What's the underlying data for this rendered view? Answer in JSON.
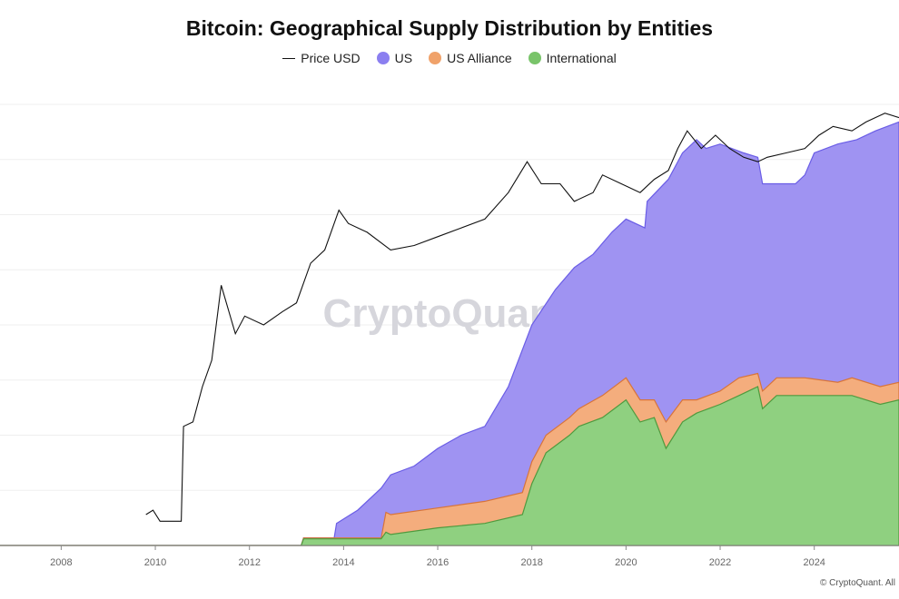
{
  "chart_data": {
    "type": "area",
    "title": "Bitcoin: Geographical Supply Distribution by Entities",
    "watermark": "CryptoQuant",
    "copyright": "© CryptoQuant. All",
    "x_ticks": [
      "2008",
      "2010",
      "2012",
      "2014",
      "2016",
      "2018",
      "2020",
      "2022",
      "2024"
    ],
    "xlim": [
      2006.7,
      2025.8
    ],
    "ylim": [
      0,
      1
    ],
    "legend": [
      {
        "name": "Price USD",
        "color": "#111111",
        "kind": "line"
      },
      {
        "name": "US",
        "color": "#8b7ff0",
        "kind": "dot"
      },
      {
        "name": "US Alliance",
        "color": "#f0a26a",
        "kind": "dot"
      },
      {
        "name": "International",
        "color": "#79c46a",
        "kind": "dot"
      }
    ],
    "series": [
      {
        "name": "International",
        "color": "#8fd080",
        "stroke": "#4f9a3e",
        "points": [
          [
            2006.7,
            0
          ],
          [
            2013.1,
            0
          ],
          [
            2013.15,
            0.015
          ],
          [
            2014.8,
            0.015
          ],
          [
            2014.9,
            0.03
          ],
          [
            2015.0,
            0.025
          ],
          [
            2016.0,
            0.04
          ],
          [
            2017.0,
            0.05
          ],
          [
            2017.8,
            0.07
          ],
          [
            2018.0,
            0.14
          ],
          [
            2018.3,
            0.21
          ],
          [
            2018.8,
            0.25
          ],
          [
            2019.0,
            0.27
          ],
          [
            2019.5,
            0.29
          ],
          [
            2020.0,
            0.33
          ],
          [
            2020.3,
            0.28
          ],
          [
            2020.6,
            0.29
          ],
          [
            2020.85,
            0.22
          ],
          [
            2021.2,
            0.28
          ],
          [
            2021.5,
            0.3
          ],
          [
            2022.0,
            0.32
          ],
          [
            2022.4,
            0.34
          ],
          [
            2022.8,
            0.36
          ],
          [
            2022.9,
            0.31
          ],
          [
            2023.2,
            0.34
          ],
          [
            2023.8,
            0.34
          ],
          [
            2024.5,
            0.34
          ],
          [
            2024.8,
            0.34
          ],
          [
            2025.4,
            0.32
          ],
          [
            2025.8,
            0.33
          ]
        ]
      },
      {
        "name": "US Alliance",
        "color": "#f4ad7d",
        "stroke": "#d8743a",
        "points": [
          [
            2006.7,
            0
          ],
          [
            2013.1,
            0
          ],
          [
            2013.15,
            0.017
          ],
          [
            2014.8,
            0.017
          ],
          [
            2014.9,
            0.075
          ],
          [
            2015.0,
            0.07
          ],
          [
            2016.0,
            0.085
          ],
          [
            2017.0,
            0.1
          ],
          [
            2017.8,
            0.12
          ],
          [
            2018.0,
            0.19
          ],
          [
            2018.3,
            0.25
          ],
          [
            2018.8,
            0.29
          ],
          [
            2019.0,
            0.31
          ],
          [
            2019.5,
            0.34
          ],
          [
            2020.0,
            0.38
          ],
          [
            2020.3,
            0.33
          ],
          [
            2020.6,
            0.33
          ],
          [
            2020.85,
            0.28
          ],
          [
            2021.2,
            0.33
          ],
          [
            2021.5,
            0.33
          ],
          [
            2022.0,
            0.35
          ],
          [
            2022.4,
            0.38
          ],
          [
            2022.8,
            0.39
          ],
          [
            2022.9,
            0.35
          ],
          [
            2023.2,
            0.38
          ],
          [
            2023.8,
            0.38
          ],
          [
            2024.5,
            0.37
          ],
          [
            2024.8,
            0.38
          ],
          [
            2025.4,
            0.36
          ],
          [
            2025.8,
            0.37
          ]
        ]
      },
      {
        "name": "US",
        "color": "#9f93f2",
        "stroke": "#6a5de6",
        "points": [
          [
            2006.7,
            0
          ],
          [
            2013.1,
            0
          ],
          [
            2013.15,
            0.017
          ],
          [
            2013.8,
            0.017
          ],
          [
            2013.85,
            0.05
          ],
          [
            2014.3,
            0.08
          ],
          [
            2014.8,
            0.13
          ],
          [
            2015.0,
            0.16
          ],
          [
            2015.5,
            0.18
          ],
          [
            2016.0,
            0.22
          ],
          [
            2016.5,
            0.25
          ],
          [
            2017.0,
            0.27
          ],
          [
            2017.5,
            0.36
          ],
          [
            2018.0,
            0.5
          ],
          [
            2018.5,
            0.58
          ],
          [
            2018.9,
            0.63
          ],
          [
            2019.3,
            0.66
          ],
          [
            2019.7,
            0.71
          ],
          [
            2020.0,
            0.74
          ],
          [
            2020.4,
            0.72
          ],
          [
            2020.45,
            0.78
          ],
          [
            2020.9,
            0.83
          ],
          [
            2021.2,
            0.89
          ],
          [
            2021.5,
            0.92
          ],
          [
            2021.7,
            0.9
          ],
          [
            2022.0,
            0.91
          ],
          [
            2022.5,
            0.89
          ],
          [
            2022.8,
            0.88
          ],
          [
            2022.9,
            0.82
          ],
          [
            2023.3,
            0.82
          ],
          [
            2023.6,
            0.82
          ],
          [
            2023.8,
            0.84
          ],
          [
            2024.0,
            0.89
          ],
          [
            2024.5,
            0.91
          ],
          [
            2024.9,
            0.92
          ],
          [
            2025.3,
            0.94
          ],
          [
            2025.8,
            0.96
          ]
        ]
      },
      {
        "name": "Price USD",
        "color": "#111111",
        "kind": "line",
        "points": [
          [
            2009.8,
            0.07
          ],
          [
            2009.95,
            0.08
          ],
          [
            2010.1,
            0.055
          ],
          [
            2010.55,
            0.055
          ],
          [
            2010.6,
            0.27
          ],
          [
            2010.8,
            0.28
          ],
          [
            2011.0,
            0.36
          ],
          [
            2011.2,
            0.42
          ],
          [
            2011.4,
            0.59
          ],
          [
            2011.7,
            0.48
          ],
          [
            2011.9,
            0.52
          ],
          [
            2012.3,
            0.5
          ],
          [
            2012.7,
            0.53
          ],
          [
            2013.0,
            0.55
          ],
          [
            2013.3,
            0.64
          ],
          [
            2013.6,
            0.67
          ],
          [
            2013.9,
            0.76
          ],
          [
            2014.1,
            0.73
          ],
          [
            2014.5,
            0.71
          ],
          [
            2015.0,
            0.67
          ],
          [
            2015.5,
            0.68
          ],
          [
            2016.0,
            0.7
          ],
          [
            2016.5,
            0.72
          ],
          [
            2017.0,
            0.74
          ],
          [
            2017.5,
            0.8
          ],
          [
            2017.9,
            0.87
          ],
          [
            2018.2,
            0.82
          ],
          [
            2018.6,
            0.82
          ],
          [
            2018.9,
            0.78
          ],
          [
            2019.3,
            0.8
          ],
          [
            2019.5,
            0.84
          ],
          [
            2019.9,
            0.82
          ],
          [
            2020.3,
            0.8
          ],
          [
            2020.6,
            0.83
          ],
          [
            2020.9,
            0.85
          ],
          [
            2021.1,
            0.9
          ],
          [
            2021.3,
            0.94
          ],
          [
            2021.6,
            0.9
          ],
          [
            2021.9,
            0.93
          ],
          [
            2022.2,
            0.9
          ],
          [
            2022.5,
            0.88
          ],
          [
            2022.8,
            0.87
          ],
          [
            2023.0,
            0.88
          ],
          [
            2023.4,
            0.89
          ],
          [
            2023.8,
            0.9
          ],
          [
            2024.1,
            0.93
          ],
          [
            2024.4,
            0.95
          ],
          [
            2024.8,
            0.94
          ],
          [
            2025.1,
            0.96
          ],
          [
            2025.5,
            0.98
          ],
          [
            2025.8,
            0.97
          ]
        ]
      }
    ]
  }
}
